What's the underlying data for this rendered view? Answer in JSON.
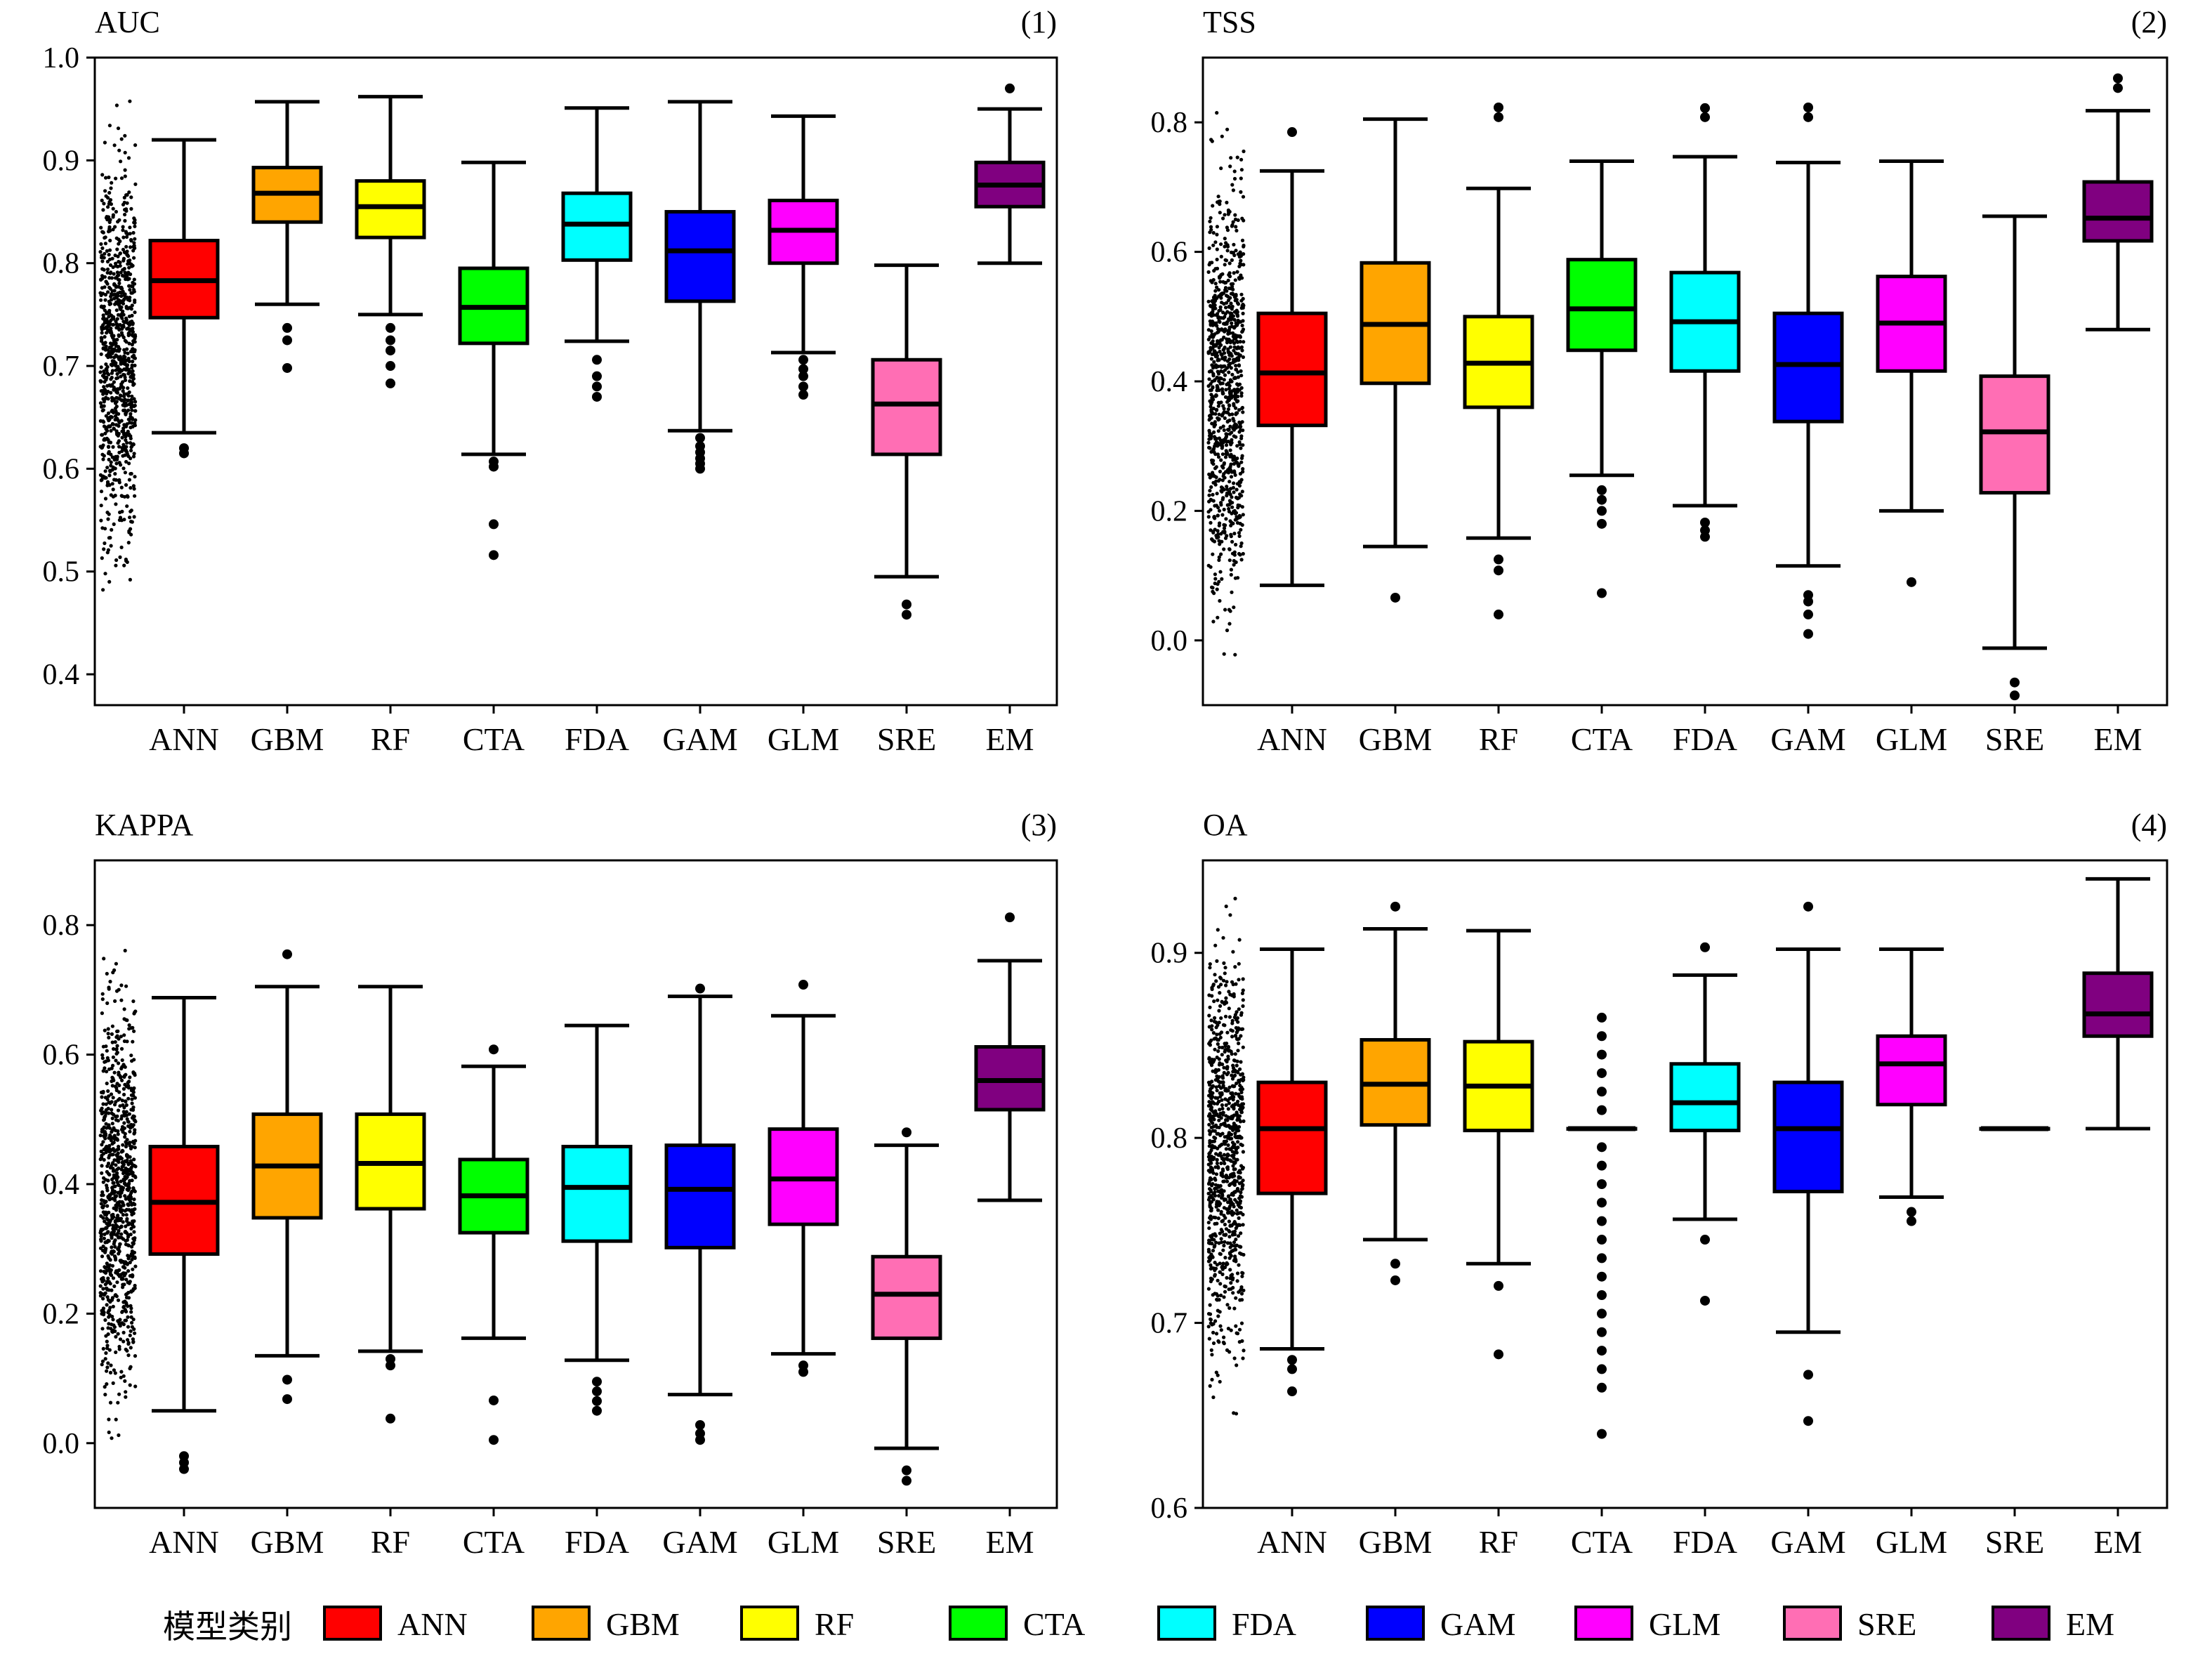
{
  "chart_data": [
    {
      "type": "box",
      "title": "AUC",
      "panel_label": "(1)",
      "ylim": [
        0.37,
        1.0
      ],
      "yticks": [
        "0.4",
        "0.5",
        "0.6",
        "0.7",
        "0.8",
        "0.9",
        "1.0"
      ],
      "categories": [
        "ANN",
        "GBM",
        "RF",
        "CTA",
        "FDA",
        "GAM",
        "GLM",
        "SRE",
        "EM"
      ],
      "boxes": [
        {
          "name": "ANN",
          "whisker_low": 0.635,
          "q1": 0.747,
          "median": 0.783,
          "q3": 0.822,
          "whisker_high": 0.92,
          "outliers": [
            0.62,
            0.615
          ]
        },
        {
          "name": "GBM",
          "whisker_low": 0.76,
          "q1": 0.84,
          "median": 0.868,
          "q3": 0.893,
          "whisker_high": 0.957,
          "outliers": [
            0.737,
            0.725,
            0.698
          ]
        },
        {
          "name": "RF",
          "whisker_low": 0.75,
          "q1": 0.825,
          "median": 0.855,
          "q3": 0.88,
          "whisker_high": 0.962,
          "outliers": [
            0.737,
            0.725,
            0.715,
            0.7,
            0.683
          ]
        },
        {
          "name": "CTA",
          "whisker_low": 0.614,
          "q1": 0.722,
          "median": 0.757,
          "q3": 0.795,
          "whisker_high": 0.898,
          "outliers": [
            0.607,
            0.602,
            0.546,
            0.516
          ]
        },
        {
          "name": "FDA",
          "whisker_low": 0.724,
          "q1": 0.803,
          "median": 0.838,
          "q3": 0.868,
          "whisker_high": 0.951,
          "outliers": [
            0.706,
            0.69,
            0.68,
            0.67
          ]
        },
        {
          "name": "GAM",
          "whisker_low": 0.637,
          "q1": 0.763,
          "median": 0.812,
          "q3": 0.85,
          "whisker_high": 0.957,
          "outliers": [
            0.63,
            0.622,
            0.616,
            0.61,
            0.605,
            0.6
          ]
        },
        {
          "name": "GLM",
          "whisker_low": 0.713,
          "q1": 0.8,
          "median": 0.832,
          "q3": 0.861,
          "whisker_high": 0.943,
          "outliers": [
            0.706,
            0.697,
            0.69,
            0.68,
            0.672
          ]
        },
        {
          "name": "SRE",
          "whisker_low": 0.495,
          "q1": 0.614,
          "median": 0.663,
          "q3": 0.706,
          "whisker_high": 0.798,
          "outliers": [
            0.468,
            0.458
          ]
        },
        {
          "name": "EM",
          "whisker_low": 0.8,
          "q1": 0.855,
          "median": 0.876,
          "q3": 0.898,
          "whisker_high": 0.95,
          "outliers": [
            0.97
          ]
        }
      ]
    },
    {
      "type": "box",
      "title": "TSS",
      "panel_label": "(2)",
      "ylim": [
        -0.1,
        0.9
      ],
      "yticks": [
        "0.0",
        "0.2",
        "0.4",
        "0.6",
        "0.8"
      ],
      "categories": [
        "ANN",
        "GBM",
        "RF",
        "CTA",
        "FDA",
        "GAM",
        "GLM",
        "SRE",
        "EM"
      ],
      "boxes": [
        {
          "name": "ANN",
          "whisker_low": 0.085,
          "q1": 0.332,
          "median": 0.413,
          "q3": 0.505,
          "whisker_high": 0.725,
          "outliers": [
            0.785
          ]
        },
        {
          "name": "GBM",
          "whisker_low": 0.145,
          "q1": 0.397,
          "median": 0.488,
          "q3": 0.583,
          "whisker_high": 0.805,
          "outliers": [
            0.066
          ]
        },
        {
          "name": "RF",
          "whisker_low": 0.158,
          "q1": 0.36,
          "median": 0.428,
          "q3": 0.5,
          "whisker_high": 0.698,
          "outliers": [
            0.823,
            0.808,
            0.125,
            0.108,
            0.04
          ]
        },
        {
          "name": "CTA",
          "whisker_low": 0.255,
          "q1": 0.448,
          "median": 0.512,
          "q3": 0.588,
          "whisker_high": 0.74,
          "outliers": [
            0.232,
            0.217,
            0.2,
            0.18,
            0.073
          ]
        },
        {
          "name": "FDA",
          "whisker_low": 0.208,
          "q1": 0.416,
          "median": 0.492,
          "q3": 0.568,
          "whisker_high": 0.747,
          "outliers": [
            0.822,
            0.808,
            0.182,
            0.17,
            0.16
          ]
        },
        {
          "name": "GAM",
          "whisker_low": 0.115,
          "q1": 0.338,
          "median": 0.426,
          "q3": 0.505,
          "whisker_high": 0.738,
          "outliers": [
            0.823,
            0.808,
            0.07,
            0.06,
            0.04,
            0.01
          ]
        },
        {
          "name": "GLM",
          "whisker_low": 0.2,
          "q1": 0.416,
          "median": 0.49,
          "q3": 0.562,
          "whisker_high": 0.74,
          "outliers": [
            0.09
          ]
        },
        {
          "name": "SRE",
          "whisker_low": -0.012,
          "q1": 0.228,
          "median": 0.322,
          "q3": 0.408,
          "whisker_high": 0.655,
          "outliers": [
            -0.065,
            -0.085
          ]
        },
        {
          "name": "EM",
          "whisker_low": 0.48,
          "q1": 0.617,
          "median": 0.652,
          "q3": 0.708,
          "whisker_high": 0.818,
          "outliers": [
            0.868,
            0.853
          ]
        }
      ]
    },
    {
      "type": "box",
      "title": "KAPPA",
      "panel_label": "(3)",
      "ylim": [
        -0.1,
        0.9
      ],
      "yticks": [
        "0.0",
        "0.2",
        "0.4",
        "0.6",
        "0.8"
      ],
      "categories": [
        "ANN",
        "GBM",
        "RF",
        "CTA",
        "FDA",
        "GAM",
        "GLM",
        "SRE",
        "EM"
      ],
      "boxes": [
        {
          "name": "ANN",
          "whisker_low": 0.05,
          "q1": 0.292,
          "median": 0.372,
          "q3": 0.458,
          "whisker_high": 0.688,
          "outliers": [
            -0.02,
            -0.03,
            -0.04
          ]
        },
        {
          "name": "GBM",
          "whisker_low": 0.135,
          "q1": 0.348,
          "median": 0.428,
          "q3": 0.508,
          "whisker_high": 0.705,
          "outliers": [
            0.755,
            0.098,
            0.068
          ]
        },
        {
          "name": "RF",
          "whisker_low": 0.142,
          "q1": 0.362,
          "median": 0.432,
          "q3": 0.508,
          "whisker_high": 0.705,
          "outliers": [
            0.13,
            0.12,
            0.038
          ]
        },
        {
          "name": "CTA",
          "whisker_low": 0.162,
          "q1": 0.325,
          "median": 0.382,
          "q3": 0.438,
          "whisker_high": 0.582,
          "outliers": [
            0.608,
            0.066,
            0.005
          ]
        },
        {
          "name": "FDA",
          "whisker_low": 0.128,
          "q1": 0.312,
          "median": 0.395,
          "q3": 0.458,
          "whisker_high": 0.645,
          "outliers": [
            0.095,
            0.08,
            0.065,
            0.05
          ]
        },
        {
          "name": "GAM",
          "whisker_low": 0.075,
          "q1": 0.302,
          "median": 0.392,
          "q3": 0.46,
          "whisker_high": 0.69,
          "outliers": [
            0.702,
            0.028,
            0.015,
            0.005
          ]
        },
        {
          "name": "GLM",
          "whisker_low": 0.138,
          "q1": 0.338,
          "median": 0.408,
          "q3": 0.485,
          "whisker_high": 0.66,
          "outliers": [
            0.708,
            0.12,
            0.11
          ]
        },
        {
          "name": "SRE",
          "whisker_low": -0.008,
          "q1": 0.162,
          "median": 0.23,
          "q3": 0.288,
          "whisker_high": 0.46,
          "outliers": [
            0.48,
            -0.042,
            -0.058
          ]
        },
        {
          "name": "EM",
          "whisker_low": 0.375,
          "q1": 0.515,
          "median": 0.56,
          "q3": 0.612,
          "whisker_high": 0.745,
          "outliers": [
            0.812
          ]
        }
      ]
    },
    {
      "type": "box",
      "title": "OA",
      "panel_label": "(4)",
      "ylim": [
        0.6,
        0.95
      ],
      "yticks": [
        "0.6",
        "0.7",
        "0.8",
        "0.9"
      ],
      "categories": [
        "ANN",
        "GBM",
        "RF",
        "CTA",
        "FDA",
        "GAM",
        "GLM",
        "SRE",
        "EM"
      ],
      "boxes": [
        {
          "name": "ANN",
          "whisker_low": 0.686,
          "q1": 0.77,
          "median": 0.805,
          "q3": 0.83,
          "whisker_high": 0.902,
          "outliers": [
            0.68,
            0.675,
            0.663
          ]
        },
        {
          "name": "GBM",
          "whisker_low": 0.745,
          "q1": 0.807,
          "median": 0.829,
          "q3": 0.853,
          "whisker_high": 0.913,
          "outliers": [
            0.925,
            0.732,
            0.723
          ]
        },
        {
          "name": "RF",
          "whisker_low": 0.732,
          "q1": 0.804,
          "median": 0.828,
          "q3": 0.852,
          "whisker_high": 0.912,
          "outliers": [
            0.72,
            0.683
          ]
        },
        {
          "name": "CTA",
          "whisker_low": 0.805,
          "q1": 0.805,
          "median": 0.805,
          "q3": 0.805,
          "whisker_high": 0.805,
          "outliers": [
            0.865,
            0.855,
            0.845,
            0.835,
            0.825,
            0.815,
            0.795,
            0.785,
            0.775,
            0.765,
            0.755,
            0.745,
            0.735,
            0.725,
            0.715,
            0.705,
            0.695,
            0.685,
            0.675,
            0.665,
            0.64
          ]
        },
        {
          "name": "FDA",
          "whisker_low": 0.756,
          "q1": 0.804,
          "median": 0.819,
          "q3": 0.84,
          "whisker_high": 0.888,
          "outliers": [
            0.903,
            0.745,
            0.712
          ]
        },
        {
          "name": "GAM",
          "whisker_low": 0.695,
          "q1": 0.771,
          "median": 0.805,
          "q3": 0.83,
          "whisker_high": 0.902,
          "outliers": [
            0.925,
            0.672,
            0.647
          ]
        },
        {
          "name": "GLM",
          "whisker_low": 0.768,
          "q1": 0.818,
          "median": 0.84,
          "q3": 0.855,
          "whisker_high": 0.902,
          "outliers": [
            0.76,
            0.755
          ]
        },
        {
          "name": "SRE",
          "whisker_low": 0.805,
          "q1": 0.805,
          "median": 0.805,
          "q3": 0.805,
          "whisker_high": 0.805,
          "outliers": []
        },
        {
          "name": "EM",
          "whisker_low": 0.805,
          "q1": 0.855,
          "median": 0.867,
          "q3": 0.889,
          "whisker_high": 0.94,
          "outliers": []
        }
      ]
    }
  ],
  "colors": {
    "ANN": "#ff0000",
    "GBM": "#ffa500",
    "RF": "#ffff00",
    "CTA": "#00ff00",
    "FDA": "#00ffff",
    "GAM": "#0000ff",
    "GLM": "#ff00ff",
    "SRE": "#ff6eb4",
    "EM": "#800080"
  },
  "legend": {
    "title": "模型类别",
    "items": [
      "ANN",
      "GBM",
      "RF",
      "CTA",
      "FDA",
      "GAM",
      "GLM",
      "SRE",
      "EM"
    ]
  }
}
